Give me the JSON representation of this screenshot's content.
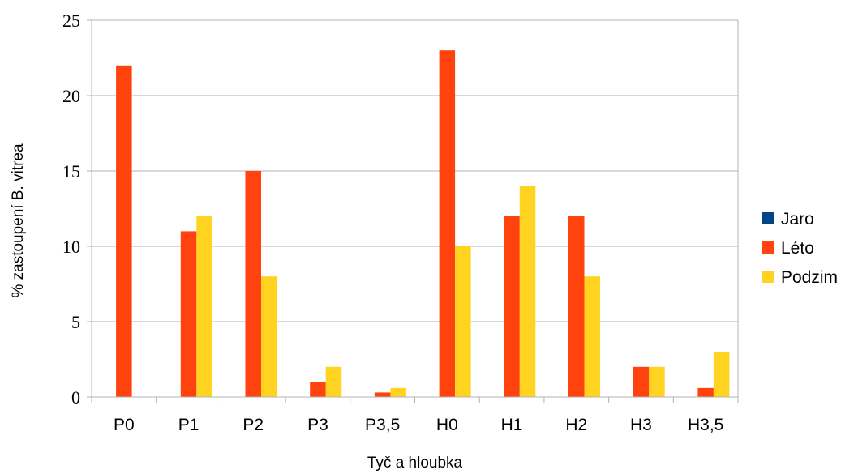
{
  "chart_data": {
    "type": "bar",
    "title": "",
    "xlabel": "Tyč a hloubka",
    "ylabel": "% zastoupení B. vitrea",
    "ylim": [
      0,
      25
    ],
    "yticks": [
      0,
      5,
      10,
      15,
      20,
      25
    ],
    "grid": true,
    "legend_position": "right",
    "categories": [
      "P0",
      "P1",
      "P2",
      "P3",
      "P3,5",
      "H0",
      "H1",
      "H2",
      "H3",
      "H3,5"
    ],
    "series": [
      {
        "name": "Jaro",
        "color": "#004586",
        "values": [
          0,
          0,
          0,
          0,
          0,
          0,
          0,
          0,
          0,
          0
        ]
      },
      {
        "name": "Léto",
        "color": "#ff420e",
        "values": [
          22,
          11,
          15,
          1,
          0.3,
          23,
          12,
          12,
          2,
          0.6
        ]
      },
      {
        "name": "Podzim",
        "color": "#ffd320",
        "values": [
          0,
          12,
          8,
          2,
          0.6,
          10,
          14,
          8,
          2,
          3
        ]
      }
    ]
  }
}
